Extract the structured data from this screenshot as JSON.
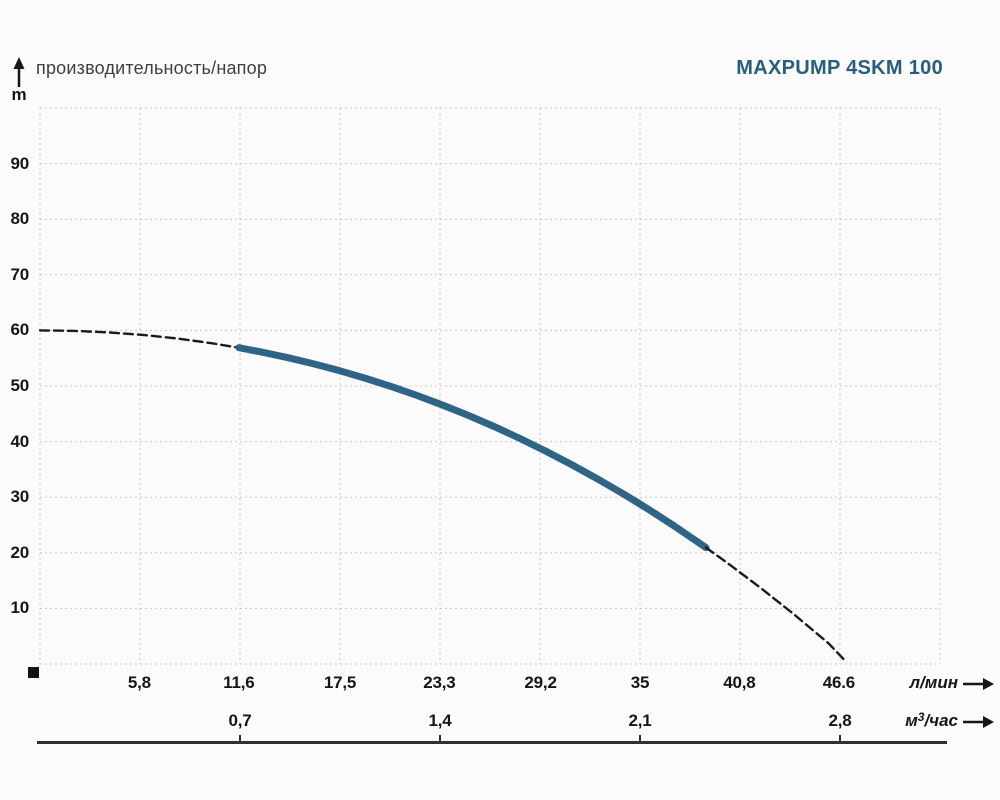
{
  "header": {
    "left_title": "производительность/напор",
    "right_title": "MAXPUMP 4SKM 100"
  },
  "colors": {
    "curve_solid": "#2e6586",
    "curve_dashed": "#1b1b1b",
    "grid": "#c9c9c9",
    "title": "#265e80",
    "subtitle": "#3f3f3f",
    "text": "#161616",
    "axis_line": "#303030",
    "origin_marker": "#141414"
  },
  "chart_data": {
    "type": "line",
    "title": "MAXPUMP 4SKM 100",
    "subtitle": "производительность/напор",
    "grid": true,
    "y_axis": {
      "unit": "m",
      "tick_labels": [
        "90",
        "80",
        "70",
        "60",
        "50",
        "40",
        "30",
        "20",
        "10"
      ],
      "tick_values": [
        90,
        80,
        70,
        60,
        50,
        40,
        30,
        20,
        10
      ],
      "range": [
        0,
        100
      ],
      "grid_divisions": 10
    },
    "x_axis_primary": {
      "label": "л/мин",
      "tick_labels": [
        "5,8",
        "11,6",
        "17,5",
        "23,3",
        "29,2",
        "35",
        "40,8",
        "46.6"
      ],
      "tick_values": [
        5.8,
        11.6,
        17.5,
        23.3,
        29.2,
        35,
        40.8,
        46.6
      ],
      "range": [
        0,
        52.5
      ],
      "grid_divisions": 9
    },
    "x_axis_secondary": {
      "label_base": "м",
      "label_sup": "3",
      "label_rest": "/час",
      "tick_labels": [
        "0,7",
        "1,4",
        "2,1",
        "2,8"
      ],
      "tick_values": [
        0.7,
        1.4,
        2.1,
        2.8
      ],
      "unit_to_lmin": 16.6667
    },
    "series": [
      {
        "name": "head-curve-dashed-left",
        "style": "dashed",
        "points": [
          [
            0,
            60
          ],
          [
            2,
            59.91
          ],
          [
            4,
            59.64
          ],
          [
            6,
            59.19
          ],
          [
            8,
            58.54
          ],
          [
            10,
            57.7
          ],
          [
            11.6,
            56.88
          ]
        ]
      },
      {
        "name": "head-curve-solid",
        "style": "solid",
        "points": [
          [
            11.6,
            56.88
          ],
          [
            13,
            56.06
          ],
          [
            14.5,
            55.07
          ],
          [
            16,
            53.96
          ],
          [
            17.5,
            52.73
          ],
          [
            19,
            51.37
          ],
          [
            20.5,
            49.89
          ],
          [
            22,
            48.29
          ],
          [
            23.5,
            46.55
          ],
          [
            25,
            44.69
          ],
          [
            26.5,
            42.69
          ],
          [
            28,
            40.56
          ],
          [
            29.5,
            38.29
          ],
          [
            31,
            35.88
          ],
          [
            32.5,
            33.33
          ],
          [
            34,
            30.64
          ],
          [
            35.5,
            27.8
          ],
          [
            37,
            24.82
          ],
          [
            38.85,
            20.93
          ]
        ]
      },
      {
        "name": "head-curve-dashed-right",
        "style": "dashed",
        "points": [
          [
            38.85,
            20.93
          ],
          [
            40,
            18.4
          ],
          [
            42,
            13.78
          ],
          [
            44,
            8.89
          ],
          [
            46,
            3.71
          ],
          [
            46.9,
            0.8
          ]
        ]
      }
    ]
  }
}
